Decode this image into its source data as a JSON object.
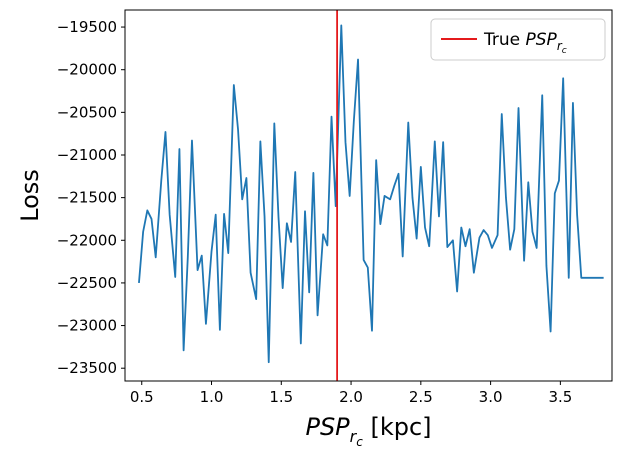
{
  "chart_data": {
    "type": "line",
    "xlabel": {
      "base": "PSP",
      "sub": "r",
      "subsub": "c",
      "unit": " [kpc]"
    },
    "ylabel": "Loss",
    "xlim": [
      0.38,
      3.87
    ],
    "ylim": [
      -23650,
      -19300
    ],
    "x_ticks": [
      0.5,
      1.0,
      1.5,
      2.0,
      2.5,
      3.0,
      3.5
    ],
    "x_tick_labels": [
      "0.5",
      "1.0",
      "1.5",
      "2.0",
      "2.5",
      "3.0",
      "3.5"
    ],
    "y_ticks": [
      -19500,
      -20000,
      -20500,
      -21000,
      -21500,
      -22000,
      -22500,
      -23000,
      -23500
    ],
    "y_tick_labels": [
      "−19500",
      "−20000",
      "−20500",
      "−21000",
      "−21500",
      "−22000",
      "−22500",
      "−23000",
      "−23500"
    ],
    "grid": false,
    "legend_position": "upper right",
    "true_value": {
      "x": 1.9,
      "color": "#e41a1c",
      "legend": {
        "prefix": "True ",
        "base": "PSP",
        "sub": "r",
        "subsub": "c"
      }
    },
    "series": [
      {
        "color": "#1f77b4",
        "x": [
          0.48,
          0.51,
          0.54,
          0.57,
          0.6,
          0.64,
          0.67,
          0.7,
          0.74,
          0.77,
          0.8,
          0.83,
          0.86,
          0.9,
          0.93,
          0.96,
          1.0,
          1.03,
          1.06,
          1.09,
          1.12,
          1.16,
          1.19,
          1.22,
          1.25,
          1.28,
          1.32,
          1.35,
          1.38,
          1.41,
          1.45,
          1.48,
          1.51,
          1.54,
          1.57,
          1.6,
          1.64,
          1.67,
          1.7,
          1.73,
          1.76,
          1.8,
          1.83,
          1.86,
          1.89,
          1.93,
          1.96,
          1.99,
          2.02,
          2.05,
          2.09,
          2.12,
          2.15,
          2.18,
          2.21,
          2.24,
          2.28,
          2.31,
          2.34,
          2.37,
          2.41,
          2.44,
          2.47,
          2.5,
          2.53,
          2.56,
          2.6,
          2.63,
          2.66,
          2.69,
          2.73,
          2.76,
          2.79,
          2.82,
          2.85,
          2.88,
          2.92,
          2.95,
          2.98,
          3.01,
          3.05,
          3.08,
          3.11,
          3.14,
          3.17,
          3.2,
          3.24,
          3.27,
          3.3,
          3.33,
          3.37,
          3.4,
          3.43,
          3.46,
          3.49,
          3.52,
          3.56,
          3.59,
          3.62,
          3.65,
          3.68,
          3.72,
          3.75,
          3.78,
          3.81
        ],
        "values": [
          -22500,
          -21900,
          -21650,
          -21750,
          -22200,
          -21300,
          -20730,
          -21700,
          -22430,
          -20930,
          -23290,
          -22200,
          -20830,
          -22350,
          -22180,
          -22980,
          -22130,
          -21700,
          -23050,
          -21690,
          -22150,
          -20180,
          -20700,
          -21520,
          -21270,
          -22380,
          -22690,
          -20840,
          -21720,
          -23430,
          -20630,
          -21730,
          -22560,
          -21800,
          -22020,
          -21200,
          -23210,
          -21660,
          -22610,
          -21210,
          -22880,
          -21930,
          -22060,
          -20550,
          -21600,
          -19480,
          -20850,
          -21480,
          -20600,
          -19880,
          -22230,
          -22320,
          -23060,
          -21060,
          -21810,
          -21480,
          -21520,
          -21360,
          -21220,
          -22190,
          -20620,
          -21500,
          -21980,
          -21140,
          -21850,
          -22070,
          -20840,
          -21720,
          -20850,
          -22080,
          -22000,
          -22600,
          -21850,
          -22070,
          -21870,
          -22380,
          -21970,
          -21880,
          -21940,
          -22090,
          -21940,
          -20520,
          -21500,
          -22110,
          -21870,
          -20450,
          -22240,
          -21320,
          -21900,
          -22090,
          -20300,
          -22300,
          -23070,
          -21450,
          -21300,
          -20100,
          -22440,
          -20390,
          -21700,
          -22440,
          -22440,
          -22440,
          -22440,
          -22440,
          -22440
        ]
      }
    ]
  }
}
